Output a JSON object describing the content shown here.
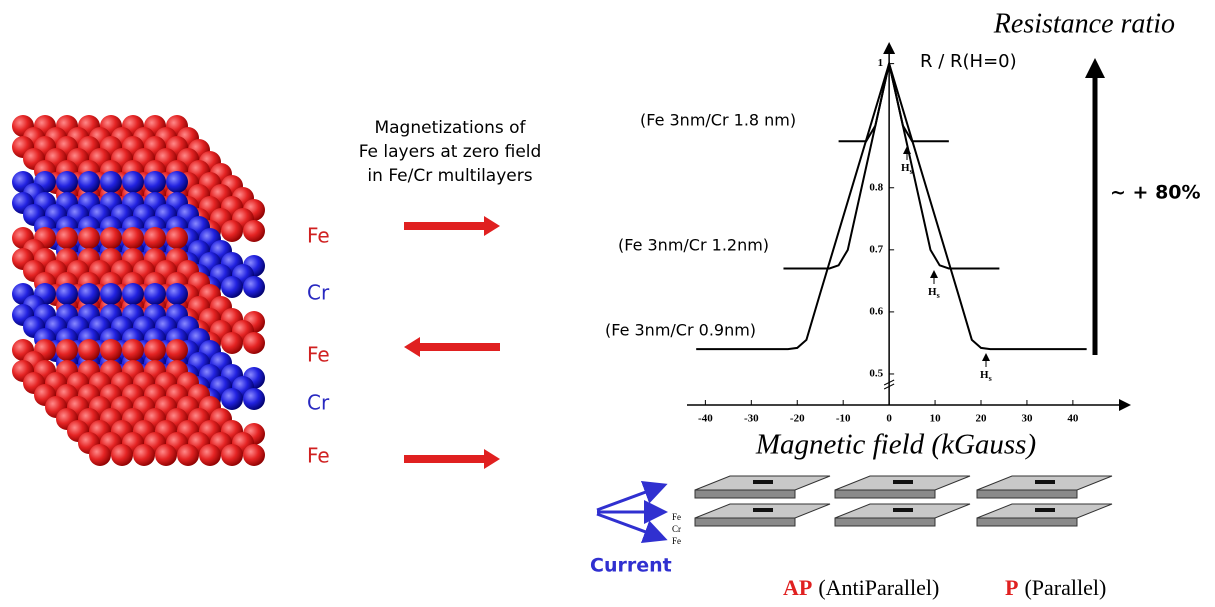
{
  "diagram": {
    "caption": [
      "Magnetizations of",
      "Fe layers at zero field",
      "in Fe/Cr multilayers"
    ],
    "layers": [
      "Fe",
      "Cr",
      "Fe",
      "Cr",
      "Fe"
    ],
    "change": "~ + 80%",
    "current": "Current",
    "stack_labels": [
      "Fe",
      "Cr",
      "Fe"
    ],
    "states": [
      {
        "abbr": "AP",
        "name": "(AntiParallel)"
      },
      {
        "abbr": "P",
        "name": "(Parallel)"
      }
    ]
  },
  "chart_data": {
    "type": "line",
    "title": "Resistance ratio",
    "y_label": "R / R(H=0)",
    "x_label": "Magnetic field (kGauss)",
    "xlim": [
      -44,
      52
    ],
    "ylim": [
      0.45,
      1.03
    ],
    "xticks": [
      -40,
      -30,
      -20,
      -10,
      0,
      10,
      20,
      30,
      40
    ],
    "yticks": [
      0.5,
      0.6,
      0.7,
      0.8,
      1
    ],
    "annotations": [
      {
        "main": "H",
        "sub": "s"
      },
      {
        "main": "H",
        "sub": "s"
      },
      {
        "main": "H",
        "sub": "s"
      }
    ],
    "series": [
      {
        "name": "(Fe 3nm/Cr 0.9nm)",
        "color": "#000000",
        "x": [
          -42,
          -22,
          -20,
          -18,
          -15,
          0,
          15,
          18,
          20,
          22,
          43
        ],
        "values": [
          0.54,
          0.54,
          0.542,
          0.555,
          0.63,
          1,
          0.63,
          0.555,
          0.542,
          0.54,
          0.54
        ]
      },
      {
        "name": "(Fe 3nm/Cr 1.2nm)",
        "color": "#000000",
        "x": [
          -23,
          -13,
          -11,
          -9,
          0,
          9,
          11,
          13,
          24
        ],
        "values": [
          0.67,
          0.67,
          0.675,
          0.7,
          1,
          0.7,
          0.675,
          0.67,
          0.67
        ]
      },
      {
        "name": "(Fe 3nm/Cr 1.8 nm)",
        "color": "#000000",
        "x": [
          -11,
          -5,
          -3,
          0,
          3,
          5,
          13
        ],
        "values": [
          0.875,
          0.875,
          0.9,
          1,
          0.9,
          0.875,
          0.875
        ]
      }
    ]
  }
}
